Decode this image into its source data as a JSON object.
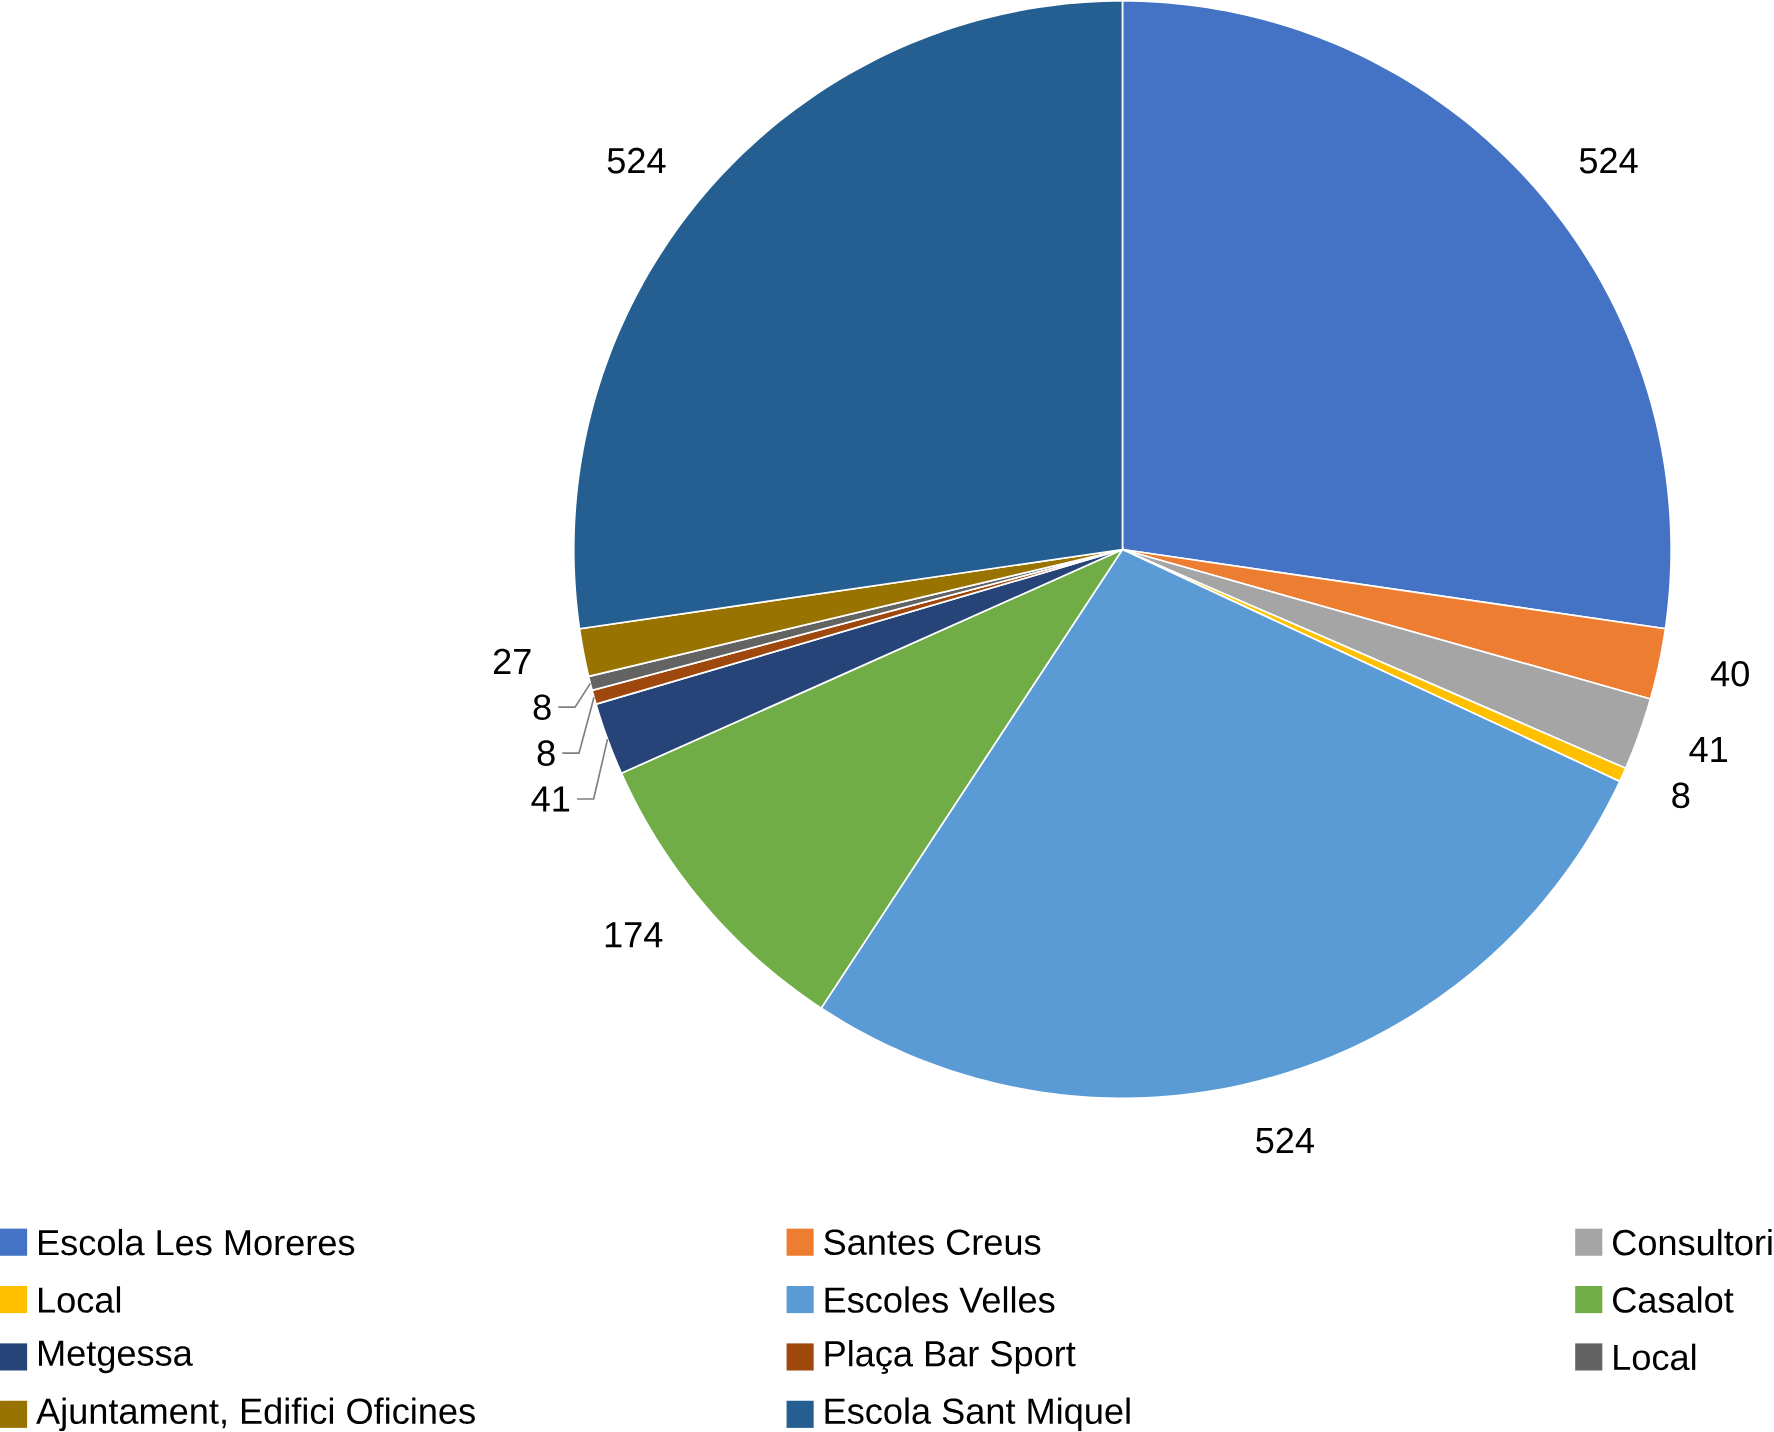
{
  "chart_data": {
    "type": "pie",
    "categories": [
      "Escola Les Moreres",
      "Santes Creus",
      "Consultori",
      "Local",
      "Escoles Velles",
      "Casalot",
      "Metgessa",
      "Plaça Bar Sport",
      "Local",
      "Ajuntament, Edifici Oficines",
      "Escola Sant Miquel"
    ],
    "values": [
      524,
      40,
      41,
      8,
      524,
      174,
      41,
      8,
      8,
      27,
      524
    ],
    "colors": [
      "#4472c4",
      "#ed7d31",
      "#a5a5a5",
      "#ffc000",
      "#5b9bd5",
      "#70ad47",
      "#264478",
      "#9e480e",
      "#636363",
      "#997300",
      "#255e91"
    ],
    "data_labels": true,
    "legend": "bottom"
  }
}
